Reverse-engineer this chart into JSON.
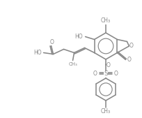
{
  "bg_color": "#ffffff",
  "line_color": "#888888",
  "lw": 1.15,
  "figsize": [
    2.04,
    1.69
  ],
  "dpi": 100,
  "xlim": [
    0,
    204
  ],
  "ylim": [
    0,
    169
  ]
}
